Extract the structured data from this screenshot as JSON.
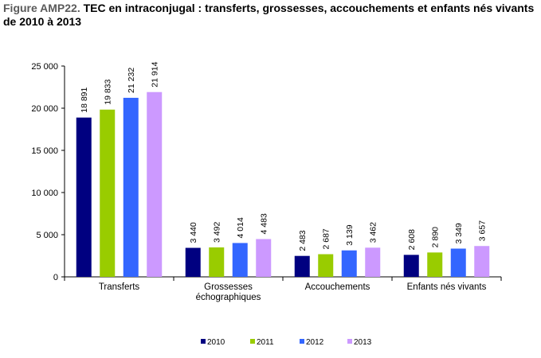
{
  "title": {
    "prefix": "Figure AMP22.",
    "text": "TEC en intraconjugal : transferts, grossesses, accouchements et enfants nés vivants de 2010 à 2013"
  },
  "chart_data": {
    "type": "bar",
    "title": "TEC en intraconjugal : transferts, grossesses, accouchements et enfants nés vivants de 2010 à 2013",
    "xlabel": "",
    "ylabel": "",
    "categories": [
      "Transferts",
      "Grossesses\néchographiques",
      "Accouchements",
      "Enfants nés vivants"
    ],
    "ylim": [
      0,
      25000
    ],
    "yticks": [
      0,
      5000,
      10000,
      15000,
      20000,
      25000
    ],
    "ytick_labels": [
      "0",
      "5 000",
      "10 000",
      "15 000",
      "20 000",
      "25 000"
    ],
    "grid": false,
    "legend_position": "bottom",
    "series": [
      {
        "name": "2010",
        "color": "#000080",
        "values": [
          18891,
          3440,
          2483,
          2608
        ],
        "labels": [
          "18 891",
          "3 440",
          "2 483",
          "2 608"
        ]
      },
      {
        "name": "2011",
        "color": "#99cc00",
        "values": [
          19833,
          3492,
          2687,
          2890
        ],
        "labels": [
          "19 833",
          "3 492",
          "2 687",
          "2 890"
        ]
      },
      {
        "name": "2012",
        "color": "#3366ff",
        "values": [
          21232,
          4014,
          3139,
          3349
        ],
        "labels": [
          "21 232",
          "4 014",
          "3 139",
          "3 349"
        ]
      },
      {
        "name": "2013",
        "color": "#cc99ff",
        "values": [
          21914,
          4483,
          3462,
          3657
        ],
        "labels": [
          "21 914",
          "4 483",
          "3 462",
          "3 657"
        ]
      }
    ]
  }
}
